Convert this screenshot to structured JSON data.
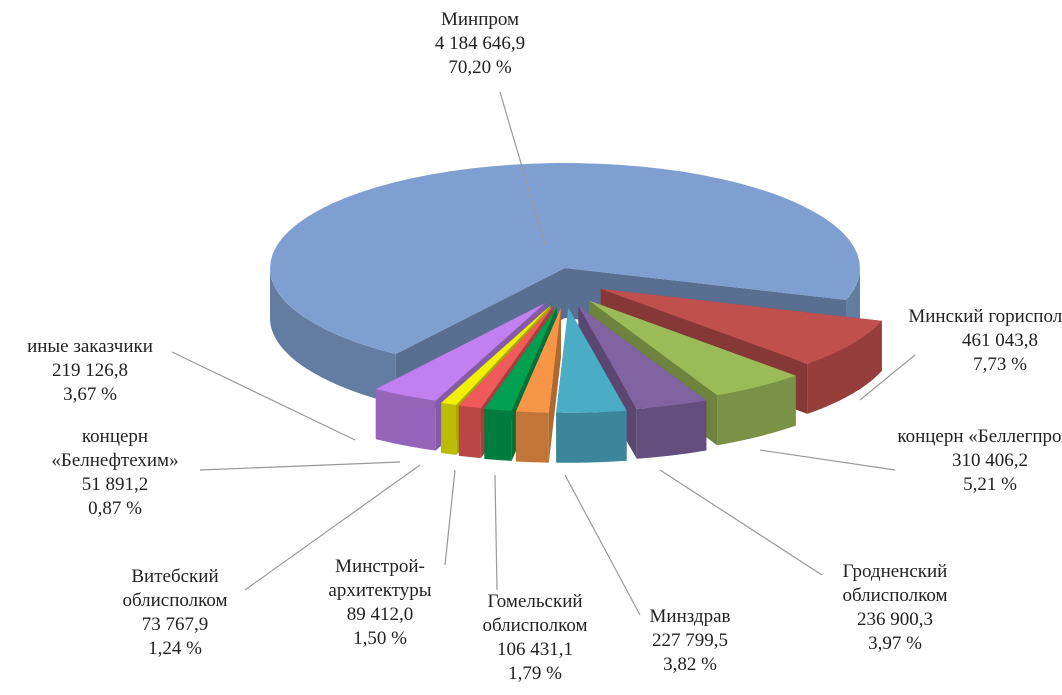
{
  "chart_data": {
    "type": "pie3d",
    "categories": [
      "Минпром",
      "Минский горисполком",
      "концерн «Беллегпром»",
      "Гродненский облисполком",
      "Минздрав",
      "Гомельский облисполком",
      "Минстрой-архитектуры",
      "Витебский облисполком",
      "концерн «Белнефтехим»",
      "иные заказчики"
    ],
    "values": [
      4184646.9,
      461043.8,
      310406.2,
      236900.3,
      227799.5,
      106431.1,
      89412.0,
      73767.9,
      51891.2,
      219126.8
    ],
    "value_labels": [
      "4 184 646,9",
      "461 043,8",
      "310 406,2",
      "236 900,3",
      "227 799,5",
      "106 431,1",
      "89 412,0",
      "73 767,9",
      "51 891,2",
      "219 126,8"
    ],
    "percents": [
      70.2,
      7.73,
      5.21,
      3.97,
      3.82,
      1.79,
      1.5,
      1.24,
      0.87,
      3.67
    ],
    "percent_labels": [
      "70,20 %",
      "7,73 %",
      "5,21 %",
      "3,97 %",
      "3,82 %",
      "1,79 %",
      "1,50 %",
      "1,24 %",
      "0,87 %",
      "3,67 %"
    ],
    "colors": [
      "#7f9fd0",
      "#c0504d",
      "#9bbb59",
      "#8064a2",
      "#4bacc6",
      "#f79646",
      "#00a050",
      "#f05a5a",
      "#f0f000",
      "#c080f0"
    ]
  }
}
